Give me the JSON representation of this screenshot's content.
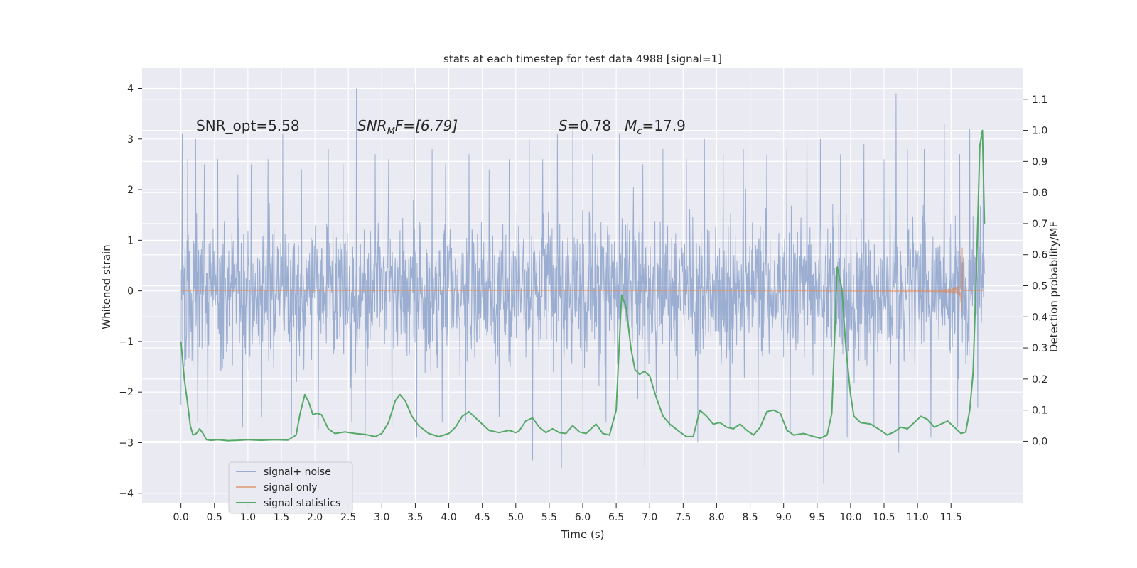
{
  "chart_data": {
    "type": "line",
    "title": "stats at each timestep for test data 4988 [signal=1]",
    "xlabel": "Time (s)",
    "ylabel": "Whitened strain",
    "y2label": "Detection probability/MF",
    "xlim": [
      -0.58,
      12.58
    ],
    "ylim": [
      -4.2,
      4.4
    ],
    "y2lim": [
      -0.2,
      1.2
    ],
    "x_ticks": [
      0.0,
      0.5,
      1.0,
      1.5,
      2.0,
      2.5,
      3.0,
      3.5,
      4.0,
      4.5,
      5.0,
      5.5,
      6.0,
      6.5,
      7.0,
      7.5,
      8.0,
      8.5,
      9.0,
      9.5,
      10.0,
      10.5,
      11.0,
      11.5
    ],
    "x_tick_labels": [
      "0.0",
      "0.5",
      "1.0",
      "1.5",
      "2.0",
      "2.5",
      "3.0",
      "3.5",
      "4.0",
      "4.5",
      "5.0",
      "5.5",
      "6.0",
      "6.5",
      "7.0",
      "7.5",
      "8.0",
      "8.5",
      "9.0",
      "9.5",
      "10.0",
      "10.5",
      "11.0",
      "11.5"
    ],
    "y_ticks": [
      -4,
      -3,
      -2,
      -1,
      0,
      1,
      2,
      3,
      4
    ],
    "y_tick_labels": [
      "−4",
      "−3",
      "−2",
      "−1",
      "0",
      "1",
      "2",
      "3",
      "4"
    ],
    "y2_ticks": [
      0.0,
      0.1,
      0.2,
      0.3,
      0.4,
      0.5,
      0.6,
      0.7,
      0.8,
      0.9,
      1.0,
      1.1
    ],
    "y2_tick_labels": [
      "0.0",
      "0.1",
      "0.2",
      "0.3",
      "0.4",
      "0.5",
      "0.6",
      "0.7",
      "0.8",
      "0.9",
      "1.0",
      "1.1"
    ],
    "grid": true,
    "legend_position": "lower-left",
    "series": [
      {
        "name": "signal+ noise",
        "axis": "left",
        "color": "#4c72b0",
        "x_range": [
          0.0,
          12.0
        ],
        "core_band": [
          -1.3,
          1.4
        ],
        "spikes_upper": [
          [
            0.02,
            3.1
          ],
          [
            0.1,
            2.6
          ],
          [
            0.22,
            3.0
          ],
          [
            0.35,
            2.5
          ],
          [
            0.55,
            2.6
          ],
          [
            0.85,
            2.3
          ],
          [
            1.05,
            2.5
          ],
          [
            1.3,
            2.6
          ],
          [
            1.52,
            3.1
          ],
          [
            1.8,
            2.4
          ],
          [
            2.2,
            2.8
          ],
          [
            2.42,
            2.5
          ],
          [
            2.62,
            4.0
          ],
          [
            2.9,
            2.7
          ],
          [
            3.1,
            2.6
          ],
          [
            3.48,
            4.1
          ],
          [
            3.75,
            2.8
          ],
          [
            3.95,
            2.5
          ],
          [
            4.3,
            2.7
          ],
          [
            4.6,
            2.4
          ],
          [
            4.9,
            2.6
          ],
          [
            5.2,
            3.0
          ],
          [
            5.4,
            2.6
          ],
          [
            5.62,
            3.1
          ],
          [
            5.85,
            3.2
          ],
          [
            6.15,
            2.7
          ],
          [
            6.55,
            3.1
          ],
          [
            6.9,
            2.5
          ],
          [
            7.2,
            2.8
          ],
          [
            7.55,
            2.6
          ],
          [
            7.82,
            3.0
          ],
          [
            8.1,
            2.7
          ],
          [
            8.4,
            2.8
          ],
          [
            8.75,
            2.7
          ],
          [
            9.05,
            2.8
          ],
          [
            9.35,
            3.2
          ],
          [
            9.55,
            3.0
          ],
          [
            9.85,
            2.7
          ],
          [
            10.2,
            2.9
          ],
          [
            10.5,
            2.6
          ],
          [
            10.68,
            3.9
          ],
          [
            10.85,
            2.8
          ],
          [
            11.1,
            2.8
          ],
          [
            11.4,
            3.3
          ],
          [
            11.63,
            2.7
          ],
          [
            11.78,
            3.2
          ],
          [
            11.98,
            2.4
          ]
        ],
        "spikes_lower": [
          [
            0.0,
            -2.25
          ],
          [
            0.25,
            -2.6
          ],
          [
            0.4,
            -2.65
          ],
          [
            0.92,
            -2.7
          ],
          [
            1.2,
            -2.5
          ],
          [
            1.65,
            -2.85
          ],
          [
            2.05,
            -2.75
          ],
          [
            2.55,
            -2.6
          ],
          [
            2.75,
            -2.9
          ],
          [
            3.15,
            -2.7
          ],
          [
            3.52,
            -2.9
          ],
          [
            3.9,
            -2.6
          ],
          [
            4.25,
            -2.6
          ],
          [
            4.75,
            -2.5
          ],
          [
            5.25,
            -3.35
          ],
          [
            5.68,
            -3.5
          ],
          [
            6.0,
            -2.9
          ],
          [
            6.35,
            -2.6
          ],
          [
            6.93,
            -3.5
          ],
          [
            7.3,
            -2.7
          ],
          [
            7.72,
            -3.0
          ],
          [
            8.2,
            -2.7
          ],
          [
            8.62,
            -2.65
          ],
          [
            9.1,
            -2.8
          ],
          [
            9.6,
            -3.8
          ],
          [
            9.95,
            -2.9
          ],
          [
            10.35,
            -2.7
          ],
          [
            10.72,
            -3.2
          ],
          [
            11.2,
            -2.9
          ],
          [
            11.6,
            -2.7
          ],
          [
            11.9,
            -2.3
          ]
        ]
      },
      {
        "name": "signal only",
        "axis": "left",
        "color": "#dd8452",
        "x_range": [
          0.0,
          12.0
        ],
        "chirp_end": 11.67,
        "peak_amplitude": 1.0
      },
      {
        "name": "signal statistics",
        "axis": "right",
        "color": "#55a868",
        "x": [
          0.0,
          0.05,
          0.1,
          0.14,
          0.18,
          0.23,
          0.28,
          0.33,
          0.38,
          0.45,
          0.55,
          0.7,
          0.85,
          1.0,
          1.2,
          1.4,
          1.6,
          1.72,
          1.78,
          1.85,
          1.91,
          1.97,
          2.03,
          2.1,
          2.2,
          2.3,
          2.45,
          2.6,
          2.75,
          2.9,
          3.0,
          3.1,
          3.2,
          3.27,
          3.35,
          3.45,
          3.55,
          3.7,
          3.85,
          4.0,
          4.1,
          4.2,
          4.3,
          4.45,
          4.6,
          4.75,
          4.9,
          5.0,
          5.05,
          5.15,
          5.25,
          5.35,
          5.45,
          5.55,
          5.65,
          5.75,
          5.85,
          5.95,
          6.05,
          6.2,
          6.3,
          6.4,
          6.5,
          6.58,
          6.65,
          6.72,
          6.78,
          6.85,
          6.92,
          7.0,
          7.1,
          7.2,
          7.3,
          7.45,
          7.55,
          7.65,
          7.75,
          7.85,
          7.95,
          8.05,
          8.15,
          8.25,
          8.35,
          8.45,
          8.55,
          8.65,
          8.75,
          8.85,
          8.95,
          9.05,
          9.15,
          9.3,
          9.45,
          9.55,
          9.65,
          9.72,
          9.8,
          9.87,
          9.93,
          10.0,
          10.05,
          10.15,
          10.3,
          10.45,
          10.55,
          10.65,
          10.75,
          10.85,
          10.95,
          11.05,
          11.15,
          11.25,
          11.35,
          11.45,
          11.55,
          11.65,
          11.72,
          11.78,
          11.83,
          11.88,
          11.93,
          11.97,
          12.0
        ],
        "y": [
          0.32,
          0.2,
          0.12,
          0.05,
          0.02,
          0.025,
          0.04,
          0.025,
          0.005,
          0.003,
          0.005,
          0.002,
          0.003,
          0.005,
          0.003,
          0.005,
          0.004,
          0.02,
          0.09,
          0.15,
          0.125,
          0.085,
          0.09,
          0.085,
          0.04,
          0.025,
          0.03,
          0.025,
          0.022,
          0.015,
          0.025,
          0.06,
          0.13,
          0.15,
          0.13,
          0.08,
          0.05,
          0.025,
          0.015,
          0.025,
          0.045,
          0.08,
          0.095,
          0.065,
          0.035,
          0.028,
          0.035,
          0.028,
          0.033,
          0.065,
          0.075,
          0.045,
          0.028,
          0.04,
          0.028,
          0.025,
          0.05,
          0.03,
          0.025,
          0.055,
          0.025,
          0.02,
          0.1,
          0.47,
          0.43,
          0.3,
          0.23,
          0.215,
          0.225,
          0.21,
          0.14,
          0.08,
          0.055,
          0.03,
          0.015,
          0.015,
          0.1,
          0.08,
          0.055,
          0.06,
          0.045,
          0.04,
          0.055,
          0.035,
          0.02,
          0.045,
          0.095,
          0.1,
          0.09,
          0.035,
          0.02,
          0.025,
          0.015,
          0.01,
          0.02,
          0.09,
          0.56,
          0.49,
          0.3,
          0.15,
          0.08,
          0.06,
          0.055,
          0.035,
          0.02,
          0.03,
          0.045,
          0.04,
          0.06,
          0.08,
          0.07,
          0.045,
          0.055,
          0.065,
          0.045,
          0.025,
          0.03,
          0.1,
          0.22,
          0.55,
          0.95,
          1.0,
          0.7
        ]
      }
    ],
    "annotations": [
      {
        "text": "SNR_opt=5.58",
        "x": 0.2,
        "y": 3.15
      },
      {
        "parts": [
          "SNR",
          "M",
          "F=[6.79]"
        ],
        "x": 2.6,
        "y": 3.15
      },
      {
        "parts": [
          "S",
          "=0.78   ",
          "M",
          "c",
          "=17.9"
        ],
        "x": 5.6,
        "y": 3.15
      }
    ]
  }
}
